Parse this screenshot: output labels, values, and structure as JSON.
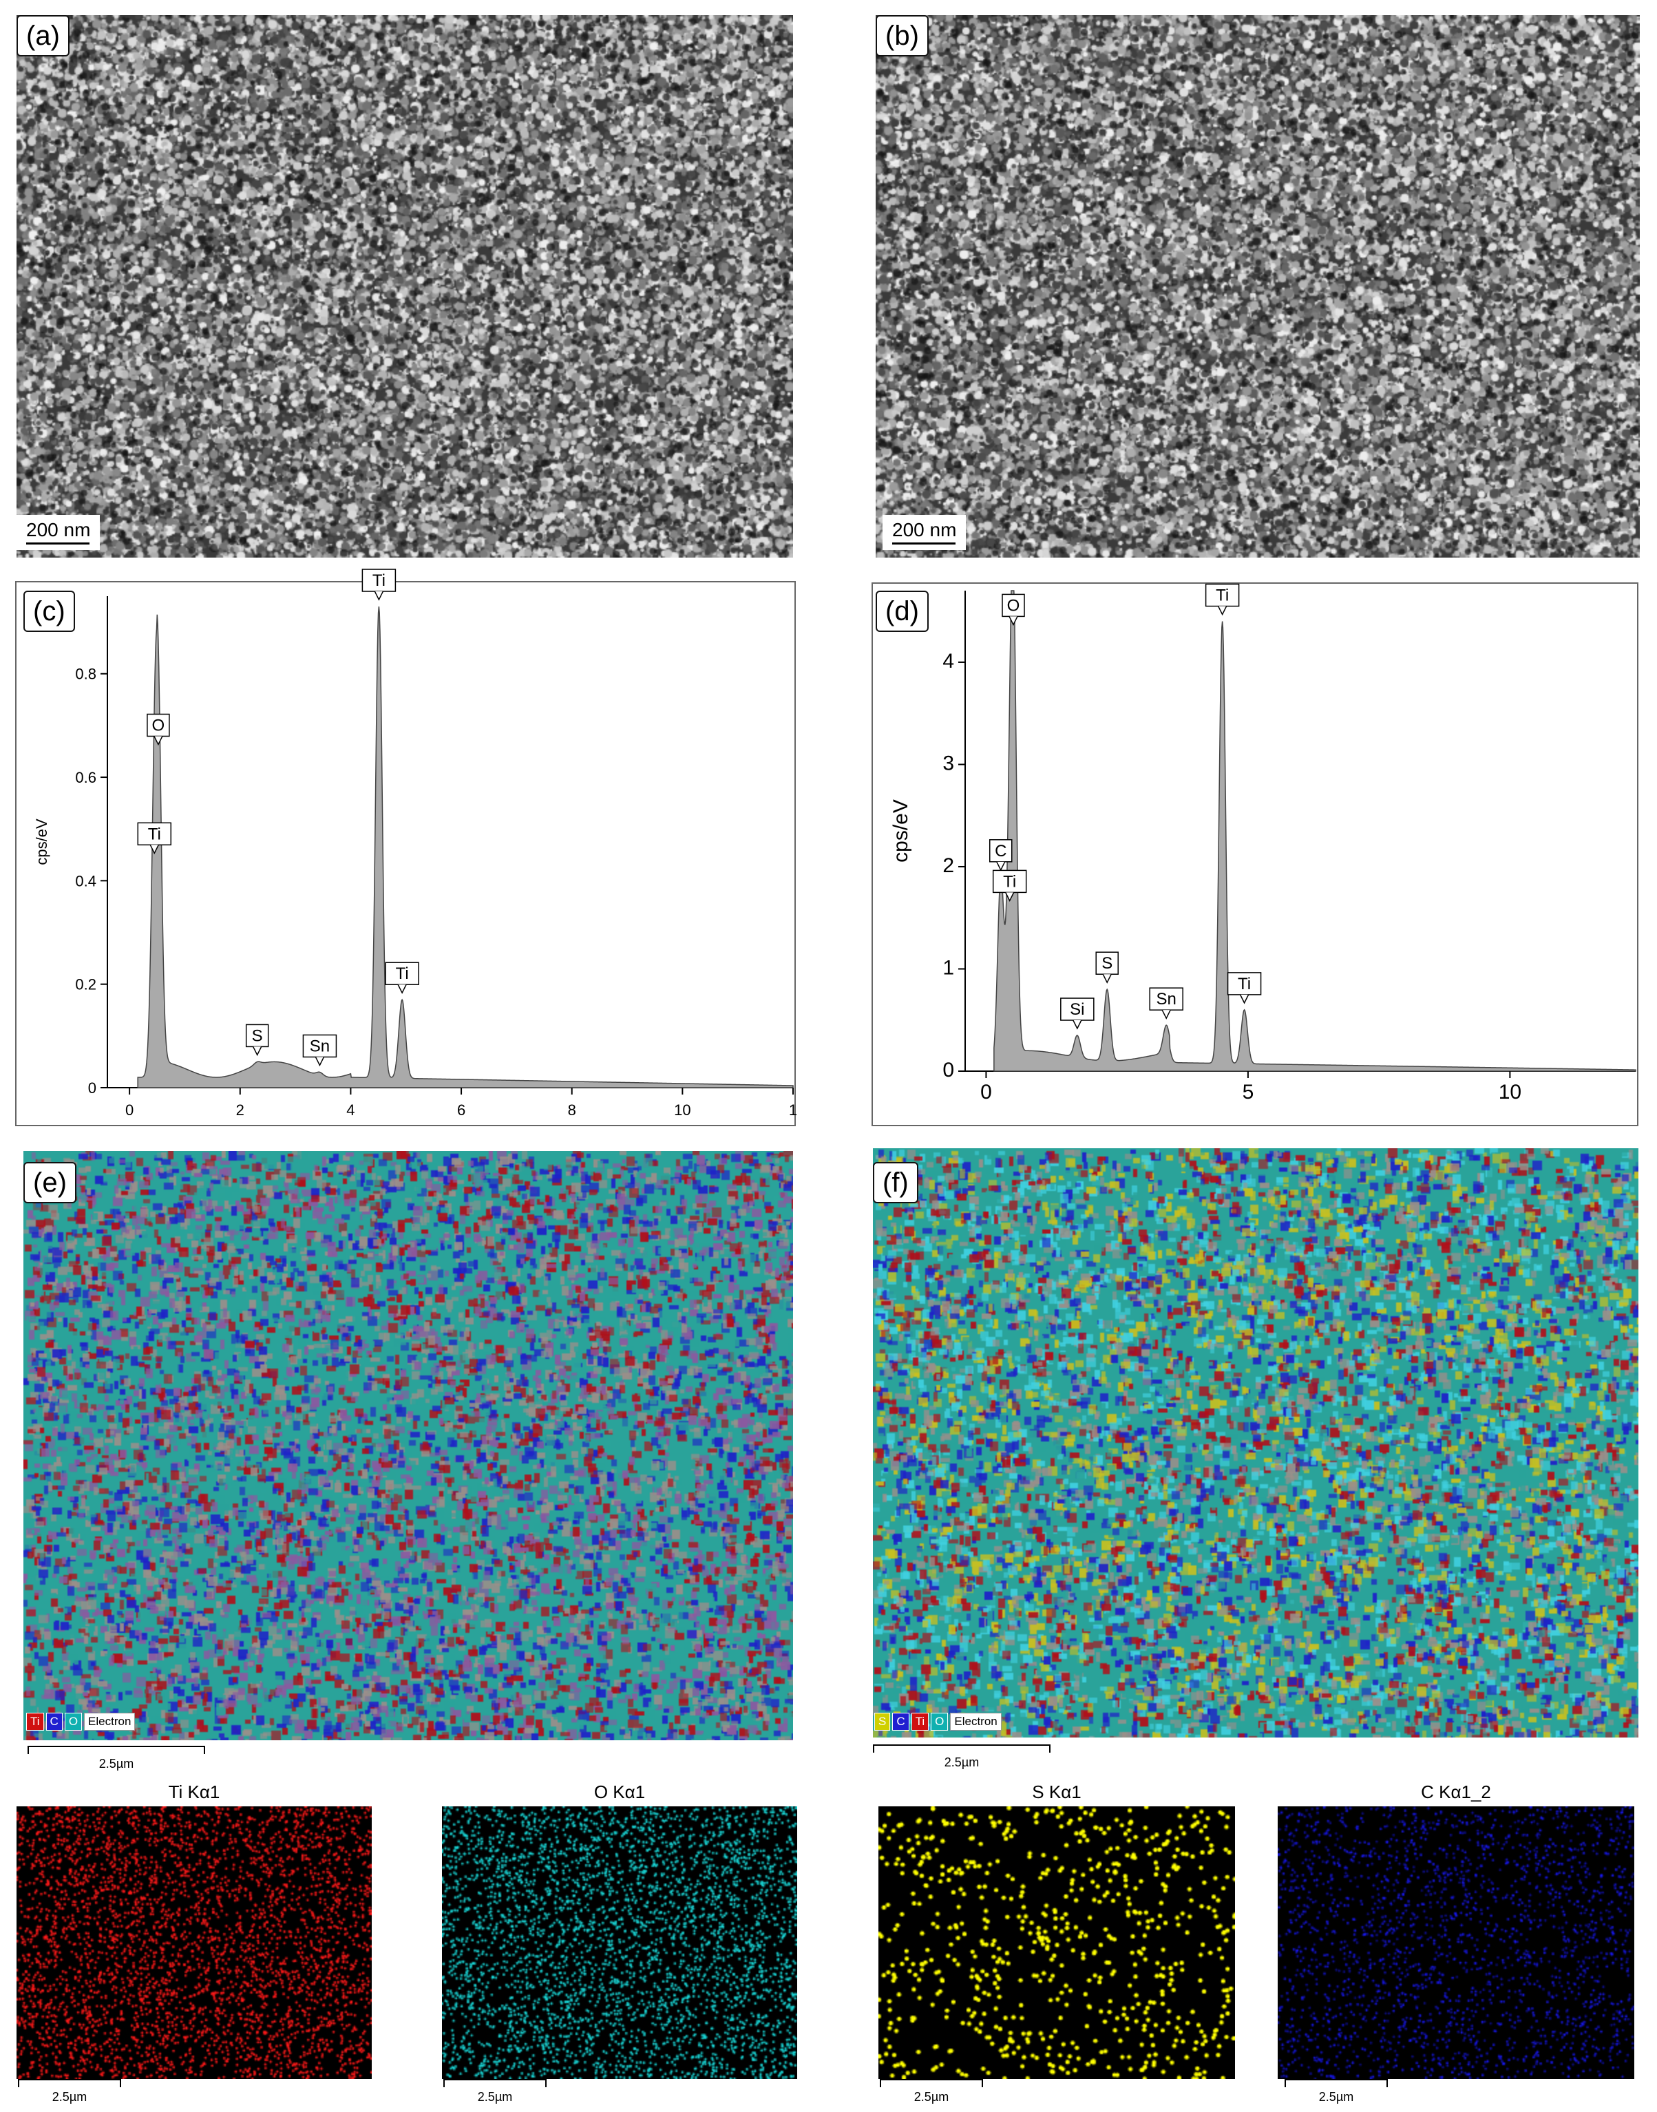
{
  "panels": {
    "a": {
      "label": "(a)",
      "scale": "200 nm"
    },
    "b": {
      "label": "(b)",
      "scale": "200 nm"
    },
    "c": {
      "label": "(c)"
    },
    "d": {
      "label": "(d)"
    },
    "e": {
      "label": "(e)",
      "scale": "2.5µm",
      "legend": [
        {
          "text": "Ti",
          "color": "#d01010"
        },
        {
          "text": "C",
          "color": "#2020d0"
        },
        {
          "text": "O",
          "color": "#10b0b0"
        }
      ],
      "legend_extra": "Electron"
    },
    "f": {
      "label": "(f)",
      "scale": "2.5µm",
      "legend": [
        {
          "text": "S",
          "color": "#d0d000"
        },
        {
          "text": "C",
          "color": "#2020d0"
        },
        {
          "text": "Ti",
          "color": "#d01010"
        },
        {
          "text": "O",
          "color": "#10b0b0"
        }
      ],
      "legend_extra": "Electron"
    }
  },
  "element_maps": [
    {
      "title": "Ti Kα1",
      "scale": "2.5µm",
      "color": "#ff1a1a"
    },
    {
      "title": "O Kα1",
      "scale": "2.5µm",
      "color": "#1ad8d8"
    },
    {
      "title": "S Kα1",
      "scale": "2.5µm",
      "color": "#ffff00"
    },
    {
      "title": "C Kα1_2",
      "scale": "2.5µm",
      "color": "#1a1aff"
    }
  ],
  "chart_data": [
    {
      "type": "line",
      "panel": "(c)",
      "ylabel": "cps/eV",
      "xlabel": "",
      "xlim": [
        -0.4,
        12
      ],
      "ylim": [
        0,
        0.95
      ],
      "xticks": [
        "0",
        "2",
        "4",
        "6",
        "8",
        "10",
        "1"
      ],
      "yticks": [
        "0",
        "0.2",
        "0.4",
        "0.6",
        "0.8"
      ],
      "peaks": [
        {
          "label": "Ti",
          "x": 0.45,
          "y": 0.44
        },
        {
          "label": "O",
          "x": 0.52,
          "y": 0.65
        },
        {
          "label": "S",
          "x": 2.31,
          "y": 0.05
        },
        {
          "label": "Sn",
          "x": 3.44,
          "y": 0.03
        },
        {
          "label": "Ti",
          "x": 4.51,
          "y": 0.93
        },
        {
          "label": "Ti",
          "x": 4.93,
          "y": 0.17
        }
      ]
    },
    {
      "type": "line",
      "panel": "(d)",
      "ylabel": "cps/eV",
      "xlabel": "",
      "xlim": [
        -0.4,
        12.4
      ],
      "ylim": [
        0,
        4.7
      ],
      "xticks": [
        "0",
        "5",
        "10"
      ],
      "yticks": [
        "0",
        "1",
        "2",
        "3",
        "4"
      ],
      "peaks": [
        {
          "label": "C",
          "x": 0.28,
          "y": 1.9
        },
        {
          "label": "Ti",
          "x": 0.45,
          "y": 1.6
        },
        {
          "label": "O",
          "x": 0.52,
          "y": 4.3
        },
        {
          "label": "Si",
          "x": 1.74,
          "y": 0.35
        },
        {
          "label": "S",
          "x": 2.31,
          "y": 0.8
        },
        {
          "label": "Sn",
          "x": 3.44,
          "y": 0.45
        },
        {
          "label": "Ti",
          "x": 4.51,
          "y": 4.4
        },
        {
          "label": "Ti",
          "x": 4.93,
          "y": 0.6
        }
      ]
    }
  ]
}
